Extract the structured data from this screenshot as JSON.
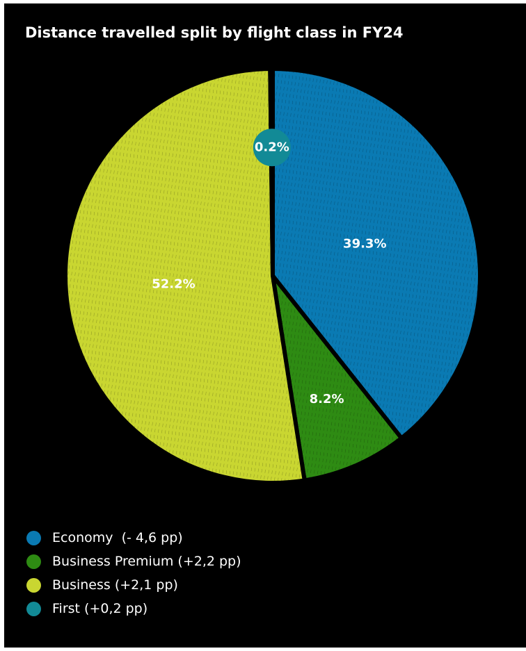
{
  "chart_data": {
    "type": "pie",
    "title": "Distance travelled split by flight class in FY24",
    "slices": [
      {
        "name": "Economy",
        "legend": "Economy  (- 4,6 pp)",
        "value": 39.3,
        "label": "39.3%",
        "color": "#0a7ab3"
      },
      {
        "name": "Business Premium",
        "legend": "Business Premium (+2,2 pp)",
        "value": 8.2,
        "label": "8.2%",
        "color": "#2e8b13"
      },
      {
        "name": "Business",
        "legend": "Business (+2,1 pp)",
        "value": 52.2,
        "label": "52.2%",
        "color": "#c9d631"
      },
      {
        "name": "First",
        "legend": "First (+0,2 pp)",
        "value": 0.2,
        "label": "0.2%",
        "color": "#128a96"
      }
    ],
    "legend_position": "bottom-left"
  }
}
